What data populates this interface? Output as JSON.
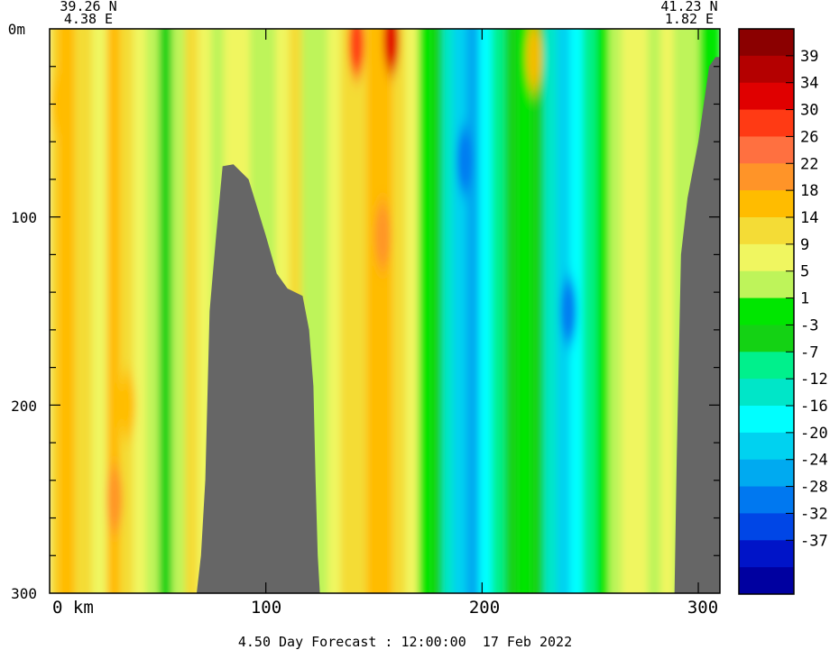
{
  "chart_data": {
    "type": "heatmap",
    "corner_left": {
      "lat": "39.26 N",
      "lon": "4.38 E"
    },
    "corner_right": {
      "lat": "41.23 N",
      "lon": "1.82 E"
    },
    "x_unit": "km",
    "y_unit": "m",
    "xlim": [
      0,
      310
    ],
    "ylim": [
      0,
      300
    ],
    "x_tick_labels": [
      "0",
      "100",
      "200",
      "300"
    ],
    "y_tick_labels": [
      "0",
      "100",
      "200",
      "300"
    ],
    "y_top_label": "0m",
    "x_first_label": "0 km",
    "footer": "4.50 Day Forecast : 12:00:00  17 Feb 2022",
    "colorbar": {
      "colors": [
        "#8b0000",
        "#b40000",
        "#e00000",
        "#ff3a14",
        "#ff7040",
        "#ff9428",
        "#ffbc00",
        "#f4dc36",
        "#f0f660",
        "#bef45a",
        "#00e600",
        "#14d214",
        "#00f08c",
        "#00e6c8",
        "#00ffff",
        "#00d2f0",
        "#00aaf0",
        "#0078f0",
        "#0046e6",
        "#0014c8",
        "#0000a0"
      ],
      "labels": [
        "39",
        "34",
        "30",
        "26",
        "22",
        "18",
        "14",
        "9",
        "5",
        "1",
        "-3",
        "-7",
        "-12",
        "-16",
        "-20",
        "-24",
        "-28",
        "-32",
        "-37"
      ]
    },
    "seabed_color": "#666666",
    "columns": [
      {
        "x": 0,
        "v": 11
      },
      {
        "x": 8,
        "v": 15
      },
      {
        "x": 16,
        "v": 9
      },
      {
        "x": 24,
        "v": 7
      },
      {
        "x": 30,
        "v": 14
      },
      {
        "x": 36,
        "v": 11
      },
      {
        "x": 42,
        "v": 6
      },
      {
        "x": 48,
        "v": 3
      },
      {
        "x": 54,
        "v": -5
      },
      {
        "x": 60,
        "v": 2
      },
      {
        "x": 66,
        "v": 9
      },
      {
        "x": 72,
        "v": 6
      },
      {
        "x": 78,
        "v": 4
      },
      {
        "x": 84,
        "v": 6
      },
      {
        "x": 90,
        "v": 7
      },
      {
        "x": 96,
        "v": 3
      },
      {
        "x": 102,
        "v": 4
      },
      {
        "x": 108,
        "v": 6
      },
      {
        "x": 114,
        "v": 9
      },
      {
        "x": 120,
        "v": 4
      },
      {
        "x": 126,
        "v": 1
      },
      {
        "x": 132,
        "v": 7
      },
      {
        "x": 138,
        "v": 10
      },
      {
        "x": 144,
        "v": 9
      },
      {
        "x": 150,
        "v": 14
      },
      {
        "x": 156,
        "v": 17
      },
      {
        "x": 162,
        "v": 12
      },
      {
        "x": 168,
        "v": 7
      },
      {
        "x": 174,
        "v": -2
      },
      {
        "x": 180,
        "v": -7
      },
      {
        "x": 184,
        "v": -16
      },
      {
        "x": 190,
        "v": -22
      },
      {
        "x": 196,
        "v": -25
      },
      {
        "x": 202,
        "v": -20
      },
      {
        "x": 208,
        "v": -12
      },
      {
        "x": 214,
        "v": -4
      },
      {
        "x": 220,
        "v": -2
      },
      {
        "x": 226,
        "v": -5
      },
      {
        "x": 232,
        "v": -14
      },
      {
        "x": 238,
        "v": -22
      },
      {
        "x": 244,
        "v": -18
      },
      {
        "x": 250,
        "v": -8
      },
      {
        "x": 256,
        "v": -2
      },
      {
        "x": 262,
        "v": 3
      },
      {
        "x": 268,
        "v": 7
      },
      {
        "x": 274,
        "v": 5
      },
      {
        "x": 280,
        "v": 2
      },
      {
        "x": 286,
        "v": 6
      },
      {
        "x": 292,
        "v": 3
      },
      {
        "x": 298,
        "v": 1
      },
      {
        "x": 304,
        "v": -1
      },
      {
        "x": 310,
        "v": -3
      }
    ],
    "hotspots": [
      {
        "x": 142,
        "depth": 8,
        "v": 28
      },
      {
        "x": 158,
        "depth": 6,
        "v": 33
      },
      {
        "x": 30,
        "depth": 250,
        "v": 18
      },
      {
        "x": 36,
        "depth": 200,
        "v": 17
      },
      {
        "x": 154,
        "depth": 110,
        "v": 19
      },
      {
        "x": 192,
        "depth": 70,
        "v": -31
      },
      {
        "x": 240,
        "depth": 150,
        "v": -30
      },
      {
        "x": 5,
        "depth": 40,
        "v": 17
      },
      {
        "x": 224,
        "depth": 15,
        "v": 16
      }
    ],
    "seabed_left": [
      [
        68,
        300
      ],
      [
        70,
        280
      ],
      [
        72,
        240
      ],
      [
        74,
        150
      ],
      [
        77,
        110
      ],
      [
        80,
        73
      ],
      [
        85,
        72
      ],
      [
        92,
        80
      ],
      [
        100,
        110
      ],
      [
        105,
        130
      ],
      [
        110,
        138
      ],
      [
        117,
        142
      ],
      [
        120,
        160
      ],
      [
        122,
        190
      ],
      [
        123,
        240
      ],
      [
        124,
        280
      ],
      [
        125,
        300
      ]
    ],
    "seabed_right": [
      [
        289,
        300
      ],
      [
        290,
        230
      ],
      [
        292,
        120
      ],
      [
        295,
        90
      ],
      [
        300,
        60
      ],
      [
        305,
        20
      ],
      [
        308,
        15
      ],
      [
        310,
        15
      ],
      [
        310,
        300
      ]
    ]
  }
}
